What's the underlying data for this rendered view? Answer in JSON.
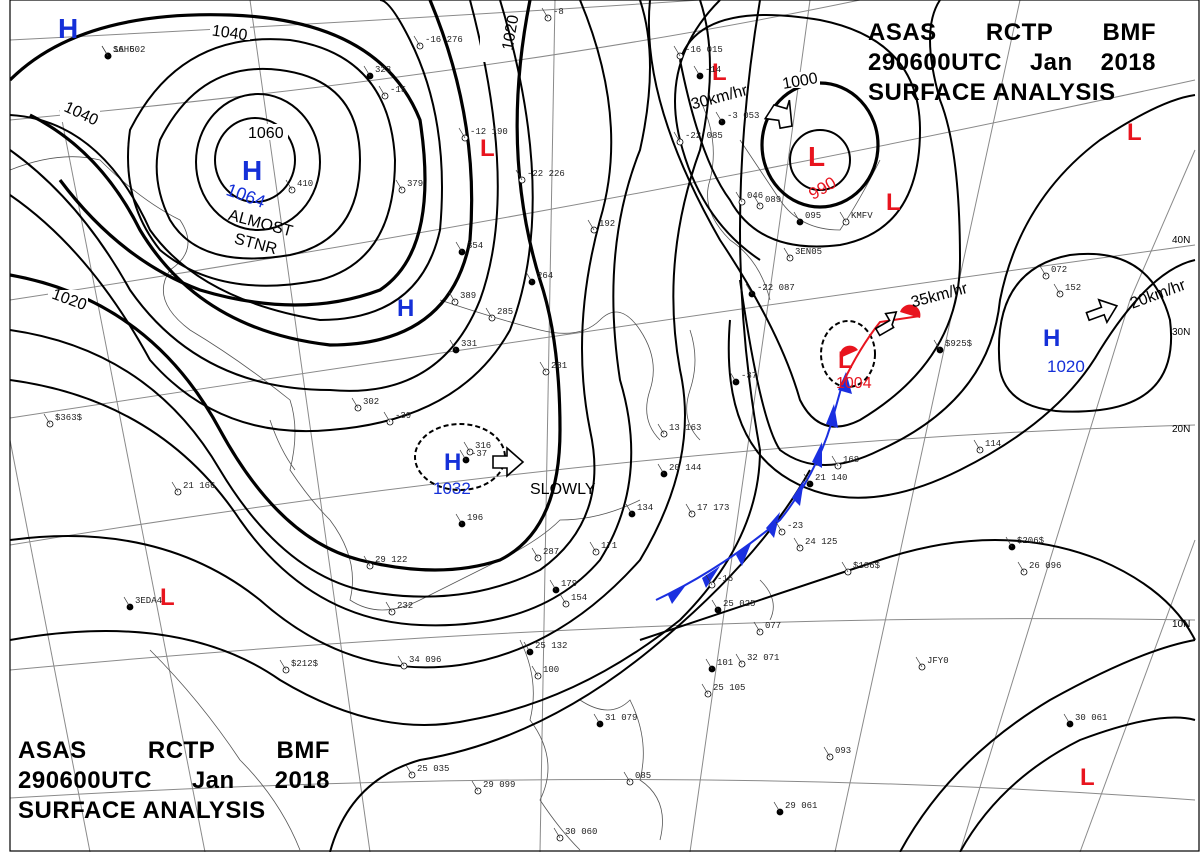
{
  "header": {
    "line1": [
      "ASAS",
      "RCTP",
      "BMF"
    ],
    "line2": [
      "290600UTC",
      "Jan",
      "2018"
    ],
    "line3": "SURFACE ANALYSIS"
  },
  "colors": {
    "high": "#1530d8",
    "low": "#e8141e",
    "cold_front": "#1a2fe0",
    "warm_front": "#e8141e",
    "isobar": "#000000",
    "grid": "#7a7a7a"
  },
  "highs": [
    {
      "id": "h1",
      "pressure": "1064"
    },
    {
      "id": "h2",
      "pressure": "1032"
    },
    {
      "id": "h3",
      "pressure": "1020"
    },
    {
      "id": "h4",
      "pressure": ""
    },
    {
      "id": "h5",
      "pressure": ""
    }
  ],
  "lows": [
    {
      "id": "l1",
      "pressure": "990"
    },
    {
      "id": "l2",
      "pressure": "1004"
    }
  ],
  "high_symbol": "H",
  "low_symbol": "L",
  "isobar_labels": [
    "1040",
    "1060",
    "1020",
    "1040",
    "1020",
    "1000"
  ],
  "movement_labels": [
    "30km/hr",
    "35km/hr",
    "20km/hr",
    "SLOWLY"
  ],
  "almost_stationary": [
    "ALMOST",
    "STNR"
  ],
  "lat_labels": [
    "40N",
    "30N",
    "20N",
    "10N"
  ],
  "stations": [
    "16 502",
    "-8",
    "-16 276",
    "323",
    "-15",
    "-16 015",
    "-14",
    "-12 190",
    "-22 085",
    "-3 053",
    "410",
    "379",
    "354",
    "-22 226",
    "192",
    "264",
    "046",
    "089",
    "095",
    "KMFV",
    "3EN05",
    "-22 087",
    "389",
    "285",
    "331",
    "302",
    "-39",
    "-37",
    "281",
    "316",
    "-37",
    "072",
    "152",
    "$925$",
    "$363$",
    "21 166",
    "20 144",
    "13 163",
    "17 173",
    "134",
    "168",
    "114",
    "21 140",
    "-23",
    "24 125",
    "$206$",
    "26 096",
    "$186$",
    "3EDA4",
    "29 122",
    "232",
    "196",
    "287",
    "171",
    "179",
    "154",
    "-16",
    "25 025",
    "$212$",
    "34 096",
    "25 132",
    "100",
    "077",
    "101",
    "25 105",
    "JFY0",
    "30 061",
    "25 035",
    "29 099",
    "31 079",
    "085",
    "093",
    "29 061",
    "30 060",
    "32 071",
    "SAH6"
  ]
}
